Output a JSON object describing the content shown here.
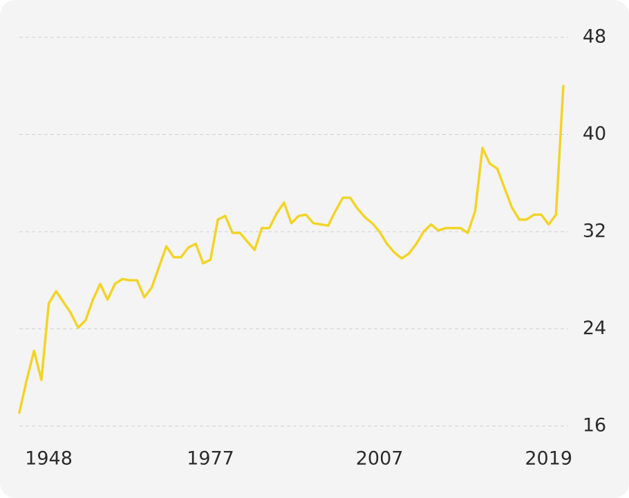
{
  "chart_data": {
    "type": "line",
    "categories": [
      null,
      null,
      null,
      null,
      "1948",
      null,
      null,
      null,
      null,
      null,
      null,
      null,
      null,
      null,
      null,
      null,
      null,
      null,
      null,
      null,
      null,
      null,
      null,
      null,
      null,
      null,
      "1977",
      null,
      null,
      null,
      null,
      null,
      null,
      null,
      null,
      null,
      null,
      null,
      null,
      null,
      null,
      null,
      null,
      null,
      null,
      null,
      null,
      null,
      null,
      "2007",
      null,
      null,
      null,
      null,
      null,
      null,
      null,
      null,
      null,
      null,
      null,
      null,
      null,
      null,
      null,
      null,
      null,
      null,
      null,
      null,
      null,
      null,
      "2019",
      null,
      null
    ],
    "series": [
      {
        "color": "#f2d426",
        "values": [
          17.1,
          19.8,
          22.2,
          19.8,
          26.1,
          27.1,
          26.2,
          25.3,
          24.1,
          24.7,
          26.4,
          27.7,
          26.4,
          27.7,
          28.1,
          28.0,
          28.0,
          26.6,
          27.4,
          29.1,
          30.8,
          29.9,
          29.9,
          30.7,
          31.0,
          29.4,
          29.7,
          33.0,
          33.3,
          31.9,
          31.9,
          31.2,
          30.5,
          32.3,
          32.3,
          33.5,
          34.4,
          32.7,
          33.3,
          33.4,
          32.7,
          32.6,
          32.5,
          33.7,
          34.8,
          34.8,
          33.9,
          33.2,
          32.7,
          32.0,
          31.0,
          30.3,
          29.8,
          30.2,
          31.0,
          32.0,
          32.6,
          32.1,
          32.3,
          32.3,
          32.3,
          31.9,
          33.7,
          38.9,
          37.6,
          37.2,
          35.6,
          34.0,
          33.0,
          33.0,
          33.4,
          33.4,
          32.6,
          33.4,
          44.0
        ]
      }
    ],
    "ylim": [
      16,
      48
    ],
    "yticks": [
      16,
      24,
      32,
      40,
      48
    ],
    "grid": true
  }
}
